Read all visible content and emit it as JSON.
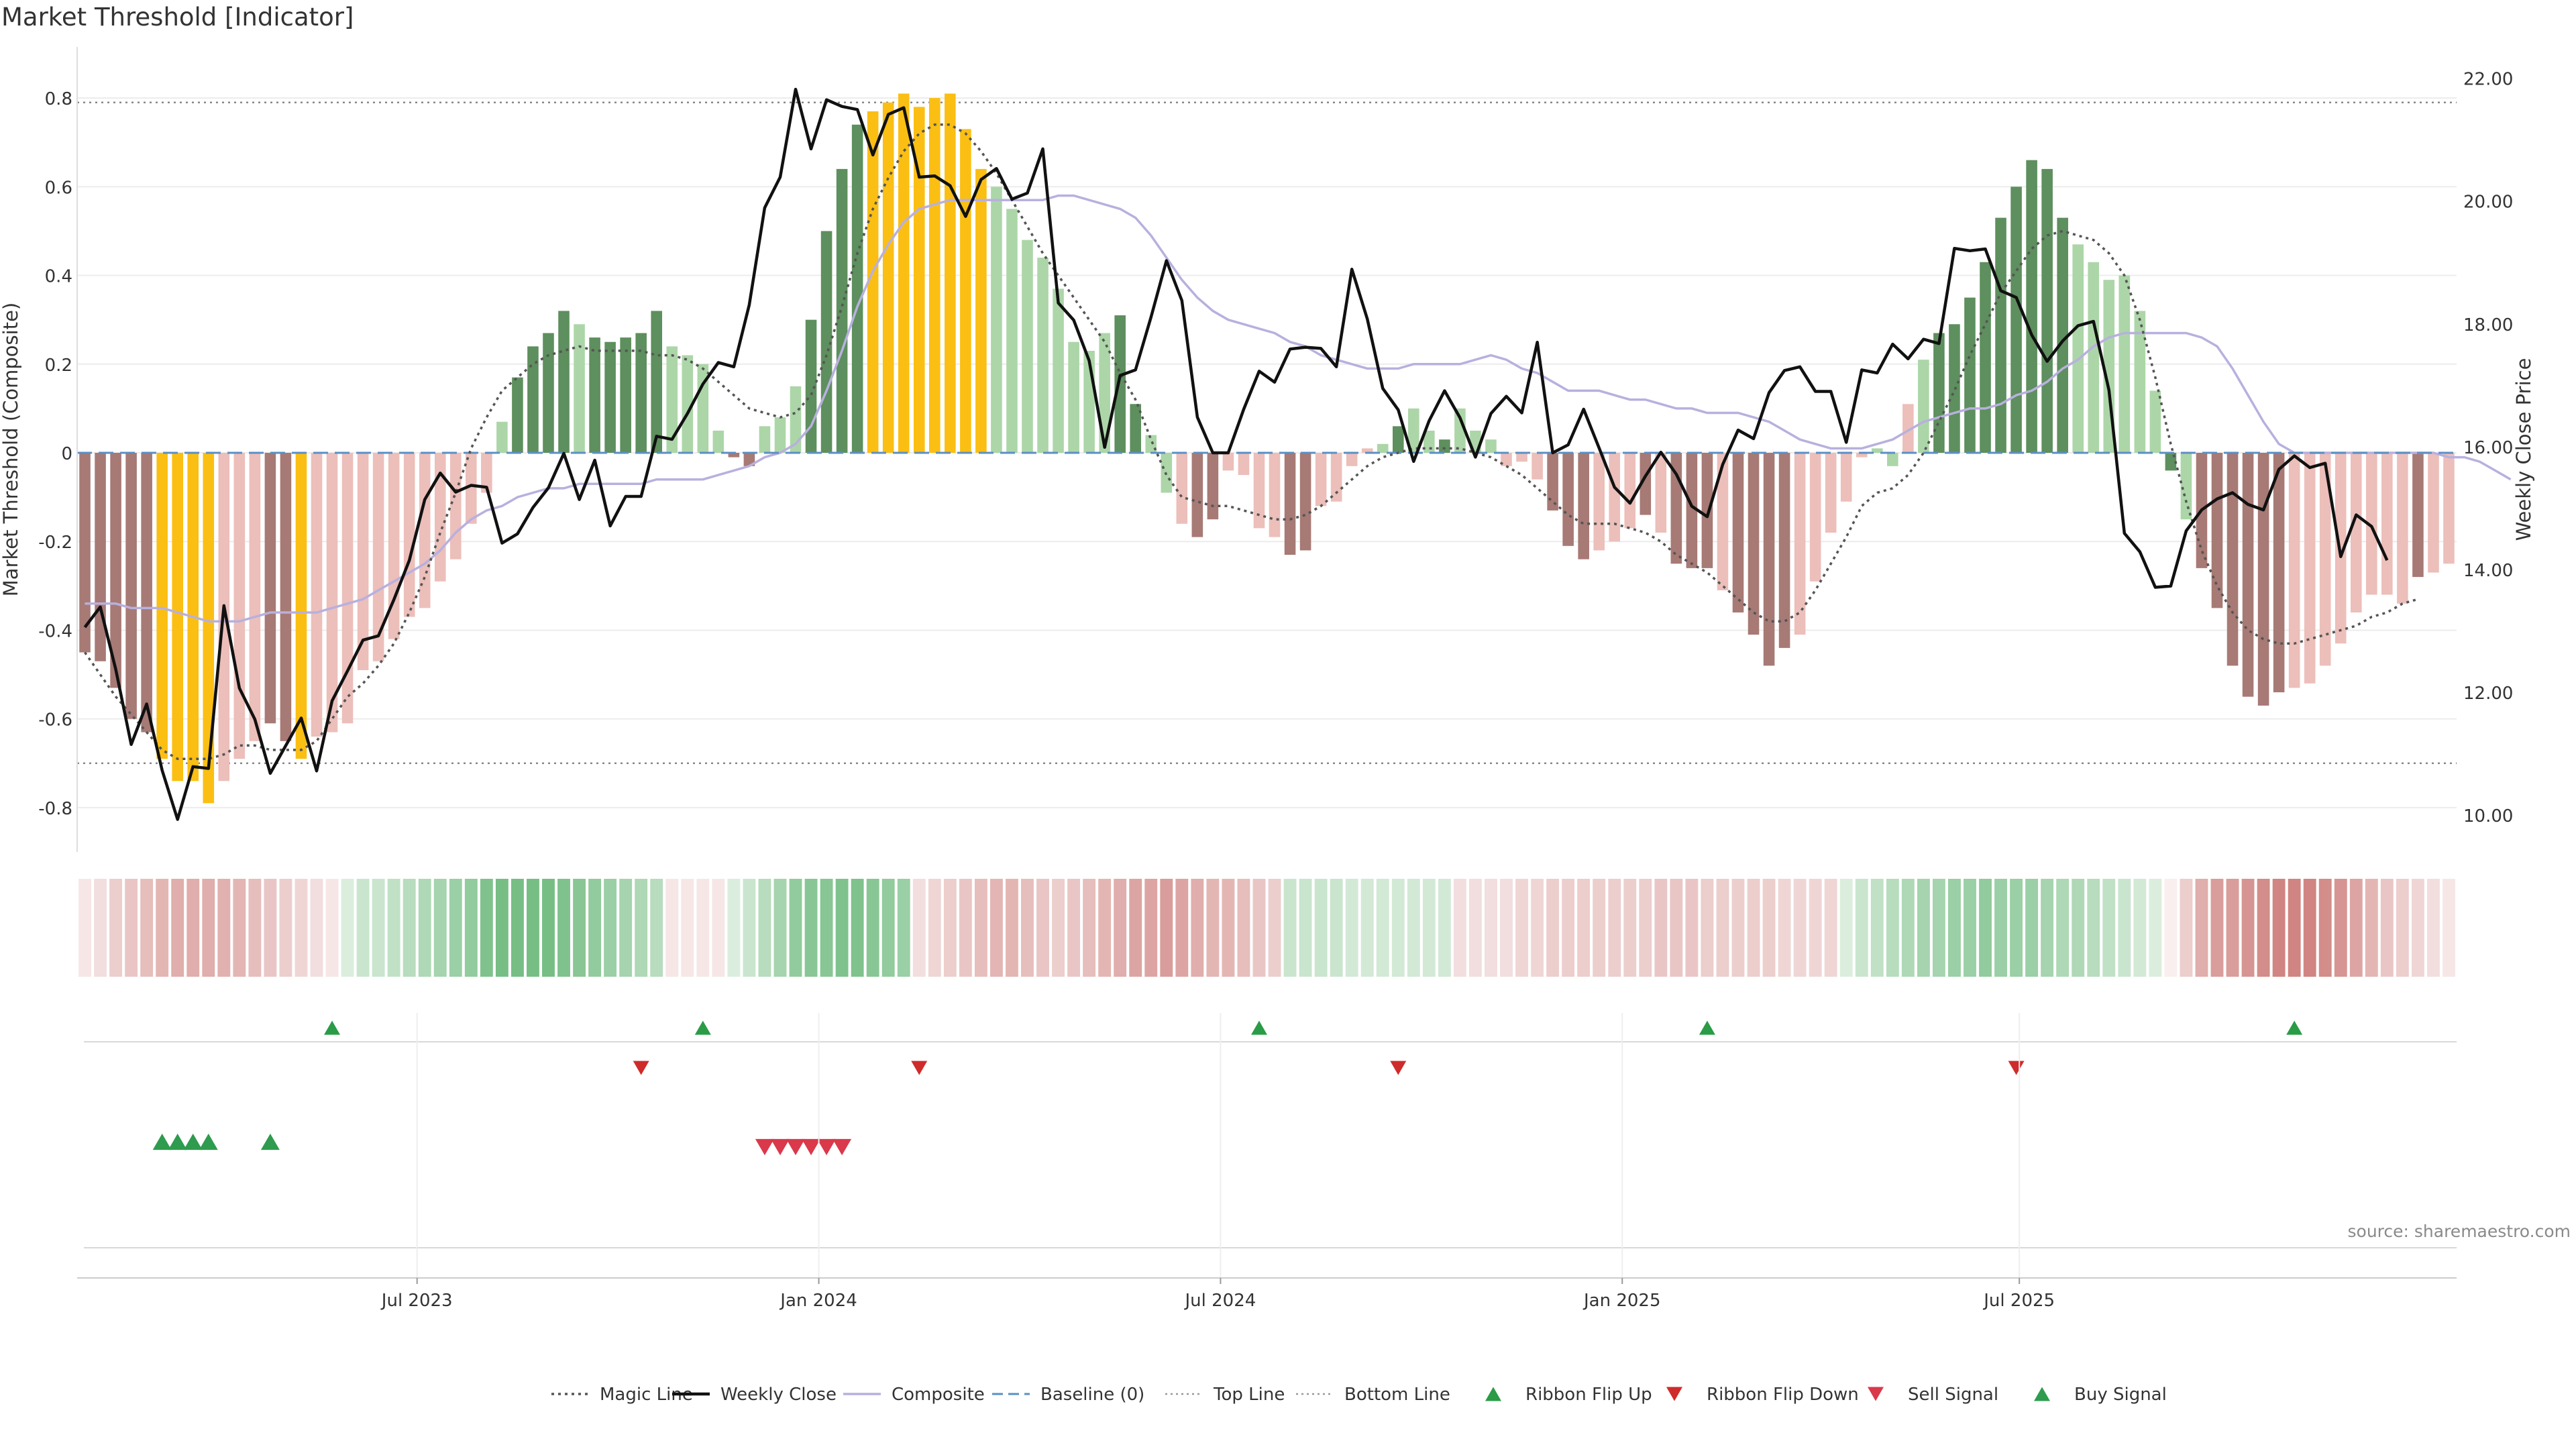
{
  "title": "Market Threshold [Indicator]",
  "source": "source: sharemaestro.com",
  "colors": {
    "strong_pos": "#5e8f5e",
    "light_pos": "#acd6a8",
    "strong_neg": "#a77a75",
    "light_neg": "#ecbfba",
    "extreme": "#fbbf13",
    "close": "#111111",
    "magic": "#555555",
    "composite": "#b8b0de",
    "baseline": "#5b8fc4",
    "buy": "#2e9b4e",
    "sell": "#d9394a",
    "ribbon_up": "#2a9b46",
    "ribbon_down": "#cf2b2b"
  },
  "chart_data": {
    "type": "bar",
    "title": "Market Threshold [Indicator]",
    "ylabel": "Market Threshold (Composite)",
    "y2label": "Weekly Close Price",
    "ylim": [
      -0.9,
      0.9
    ],
    "y2lim": [
      9.4,
      22.4
    ],
    "yticks": [
      "0.8",
      "0.6",
      "0.4",
      "0.2",
      "0",
      "-0.2",
      "-0.4",
      "-0.6",
      "-0.8"
    ],
    "y2ticks": [
      "22.00",
      "20.00",
      "18.00",
      "16.00",
      "14.00",
      "12.00",
      "10.00"
    ],
    "xticks": [
      {
        "label": "Jul 2023",
        "week": 21.5
      },
      {
        "label": "Jan 2024",
        "week": 47.5
      },
      {
        "label": "Jul 2024",
        "week": 73.5
      },
      {
        "label": "Jan 2025",
        "week": 99.5
      },
      {
        "label": "Jul 2025",
        "week": 125.2
      }
    ],
    "top_line": 0.79,
    "bottom_line": -0.7,
    "baseline": 0,
    "composite_values": [
      -0.45,
      -0.47,
      -0.53,
      -0.6,
      -0.63,
      -0.69,
      -0.74,
      -0.74,
      -0.79,
      -0.74,
      -0.69,
      -0.65,
      -0.61,
      -0.65,
      -0.69,
      -0.64,
      -0.63,
      -0.61,
      -0.49,
      -0.47,
      -0.42,
      -0.37,
      -0.35,
      -0.29,
      -0.24,
      -0.16,
      -0.09,
      0.07,
      0.17,
      0.24,
      0.27,
      0.32,
      0.29,
      0.26,
      0.25,
      0.26,
      0.27,
      0.32,
      0.24,
      0.22,
      0.2,
      0.05,
      -0.01,
      -0.03,
      0.06,
      0.08,
      0.15,
      0.3,
      0.5,
      0.64,
      0.74,
      0.77,
      0.79,
      0.81,
      0.78,
      0.8,
      0.81,
      0.73,
      0.64,
      0.6,
      0.55,
      0.48,
      0.44,
      0.37,
      0.25,
      0.23,
      0.27,
      0.31,
      0.11,
      0.04,
      -0.09,
      -0.16,
      -0.19,
      -0.15,
      -0.04,
      -0.05,
      -0.17,
      -0.19,
      -0.23,
      -0.22,
      -0.12,
      -0.11,
      -0.03,
      0.01,
      0.02,
      0.06,
      0.1,
      0.05,
      0.03,
      0.1,
      0.05,
      0.03,
      -0.03,
      -0.02,
      -0.06,
      -0.13,
      -0.21,
      -0.24,
      -0.22,
      -0.2,
      -0.17,
      -0.14,
      -0.18,
      -0.25,
      -0.26,
      -0.26,
      -0.31,
      -0.36,
      -0.41,
      -0.48,
      -0.44,
      -0.41,
      -0.29,
      -0.18,
      -0.11,
      -0.01,
      0.01,
      -0.03,
      0.11,
      0.21,
      0.27,
      0.29,
      0.35,
      0.43,
      0.53,
      0.6,
      0.66,
      0.64,
      0.53,
      0.47,
      0.43,
      0.39,
      0.4,
      0.32,
      0.14,
      -0.04,
      -0.15,
      -0.26,
      -0.35,
      -0.48,
      -0.55,
      -0.57,
      -0.54,
      -0.53,
      -0.52,
      -0.48,
      -0.43,
      -0.36,
      -0.32,
      -0.32,
      -0.34,
      -0.28,
      -0.27,
      -0.25
    ],
    "bar_categories": [
      "sn",
      "sn",
      "sn",
      "sn",
      "sn",
      "x",
      "x",
      "x",
      "x",
      "ln",
      "ln",
      "ln",
      "sn",
      "sn",
      "x",
      "ln",
      "ln",
      "ln",
      "ln",
      "ln",
      "ln",
      "ln",
      "ln",
      "ln",
      "ln",
      "ln",
      "ln",
      "lp",
      "sp",
      "sp",
      "sp",
      "sp",
      "lp",
      "sp",
      "sp",
      "sp",
      "sp",
      "sp",
      "lp",
      "lp",
      "lp",
      "lp",
      "sn",
      "sn",
      "lp",
      "lp",
      "lp",
      "sp",
      "sp",
      "sp",
      "sp",
      "x",
      "x",
      "x",
      "x",
      "x",
      "x",
      "x",
      "x",
      "lp",
      "lp",
      "lp",
      "lp",
      "lp",
      "lp",
      "lp",
      "lp",
      "sp",
      "sp",
      "lp",
      "lp",
      "ln",
      "sn",
      "sn",
      "ln",
      "ln",
      "ln",
      "ln",
      "sn",
      "sn",
      "ln",
      "ln",
      "ln",
      "ln",
      "lp",
      "sp",
      "lp",
      "lp",
      "sp",
      "lp",
      "lp",
      "lp",
      "ln",
      "ln",
      "ln",
      "sn",
      "sn",
      "sn",
      "ln",
      "ln",
      "ln",
      "sn",
      "ln",
      "sn",
      "sn",
      "sn",
      "ln",
      "sn",
      "sn",
      "sn",
      "sn",
      "ln",
      "ln",
      "ln",
      "ln",
      "ln",
      "lp",
      "lp",
      "ln",
      "lp",
      "sp",
      "sp",
      "sp",
      "sp",
      "sp",
      "sp",
      "sp",
      "sp",
      "sp",
      "lp",
      "lp",
      "lp",
      "lp",
      "lp",
      "lp",
      "sp",
      "lp",
      "sn",
      "sn",
      "sn",
      "sn",
      "sn",
      "sn",
      "ln",
      "ln",
      "ln",
      "ln",
      "ln",
      "ln",
      "ln",
      "ln",
      "sn",
      "ln",
      "ln",
      "ln"
    ],
    "weekly_close": [
      13.06,
      13.39,
      12.37,
      11.15,
      11.81,
      10.73,
      9.93,
      10.79,
      10.76,
      13.41,
      12.07,
      11.56,
      10.68,
      11.13,
      11.58,
      10.72,
      11.86,
      12.35,
      12.85,
      12.92,
      13.51,
      14.15,
      15.14,
      15.57,
      15.26,
      15.37,
      15.34,
      14.43,
      14.58,
      15.01,
      15.33,
      15.89,
      15.14,
      15.78,
      14.71,
      15.19,
      15.19,
      16.17,
      16.12,
      16.54,
      17.02,
      17.37,
      17.3,
      18.31,
      19.89,
      20.39,
      21.82,
      20.85,
      21.65,
      21.54,
      21.49,
      20.75,
      21.41,
      21.52,
      20.39,
      20.41,
      20.25,
      19.75,
      20.35,
      20.53,
      20.03,
      20.13,
      20.85,
      18.34,
      18.06,
      17.4,
      15.99,
      17.16,
      17.25,
      18.11,
      19.03,
      18.38,
      16.48,
      15.9,
      15.9,
      16.61,
      17.23,
      17.05,
      17.59,
      17.62,
      17.6,
      17.3,
      18.89,
      18.08,
      16.95,
      16.6,
      15.76,
      16.42,
      16.91,
      16.47,
      15.83,
      16.54,
      16.82,
      16.55,
      17.7,
      15.9,
      16.03,
      16.61,
      15.98,
      15.34,
      15.08,
      15.52,
      15.91,
      15.55,
      15.03,
      14.86,
      15.71,
      16.27,
      16.13,
      16.88,
      17.24,
      17.3,
      16.9,
      16.9,
      16.07,
      17.25,
      17.2,
      17.67,
      17.43,
      17.75,
      17.68,
      19.23,
      19.19,
      19.22,
      18.54,
      18.43,
      17.82,
      17.39,
      17.72,
      17.97,
      18.04,
      16.92,
      14.59,
      14.29,
      13.71,
      13.73,
      14.63,
      14.97,
      15.15,
      15.25,
      15.06,
      14.97,
      15.63,
      15.85,
      15.66,
      15.73,
      14.21,
      14.89,
      14.7,
      14.15
    ],
    "magic_line": [
      -0.45,
      -0.5,
      -0.55,
      -0.59,
      -0.63,
      -0.67,
      -0.69,
      -0.69,
      -0.69,
      -0.68,
      -0.66,
      -0.66,
      -0.67,
      -0.67,
      -0.67,
      -0.65,
      -0.6,
      -0.55,
      -0.52,
      -0.48,
      -0.43,
      -0.36,
      -0.28,
      -0.18,
      -0.09,
      0.01,
      0.08,
      0.14,
      0.17,
      0.2,
      0.22,
      0.23,
      0.24,
      0.23,
      0.23,
      0.23,
      0.23,
      0.22,
      0.22,
      0.21,
      0.19,
      0.16,
      0.13,
      0.1,
      0.09,
      0.08,
      0.09,
      0.13,
      0.22,
      0.33,
      0.45,
      0.55,
      0.62,
      0.68,
      0.72,
      0.74,
      0.74,
      0.72,
      0.68,
      0.63,
      0.57,
      0.51,
      0.45,
      0.4,
      0.35,
      0.3,
      0.25,
      0.18,
      0.12,
      0.03,
      -0.05,
      -0.1,
      -0.11,
      -0.12,
      -0.12,
      -0.13,
      -0.14,
      -0.15,
      -0.15,
      -0.14,
      -0.12,
      -0.09,
      -0.06,
      -0.03,
      -0.01,
      0,
      0.01,
      0.01,
      0.01,
      0.01,
      0,
      -0.01,
      -0.03,
      -0.05,
      -0.08,
      -0.11,
      -0.14,
      -0.16,
      -0.16,
      -0.16,
      -0.17,
      -0.18,
      -0.2,
      -0.23,
      -0.25,
      -0.27,
      -0.3,
      -0.33,
      -0.36,
      -0.38,
      -0.38,
      -0.36,
      -0.31,
      -0.25,
      -0.19,
      -0.12,
      -0.09,
      -0.08,
      -0.05,
      0,
      0.07,
      0.14,
      0.22,
      0.29,
      0.36,
      0.41,
      0.46,
      0.49,
      0.5,
      0.49,
      0.48,
      0.45,
      0.4,
      0.3,
      0.17,
      0.02,
      -0.11,
      -0.22,
      -0.3,
      -0.36,
      -0.4,
      -0.42,
      -0.43,
      -0.43,
      -0.42,
      -0.41,
      -0.4,
      -0.39,
      -0.37,
      -0.36,
      -0.34,
      -0.33
    ],
    "composite_line": [
      -0.34,
      -0.34,
      -0.34,
      -0.35,
      -0.35,
      -0.35,
      -0.36,
      -0.37,
      -0.38,
      -0.38,
      -0.38,
      -0.37,
      -0.36,
      -0.36,
      -0.36,
      -0.36,
      -0.35,
      -0.34,
      -0.33,
      -0.31,
      -0.29,
      -0.27,
      -0.25,
      -0.22,
      -0.18,
      -0.15,
      -0.13,
      -0.12,
      -0.1,
      -0.09,
      -0.08,
      -0.08,
      -0.07,
      -0.07,
      -0.07,
      -0.07,
      -0.07,
      -0.06,
      -0.06,
      -0.06,
      -0.06,
      -0.05,
      -0.04,
      -0.03,
      -0.01,
      0,
      0.02,
      0.06,
      0.14,
      0.23,
      0.33,
      0.41,
      0.47,
      0.52,
      0.55,
      0.56,
      0.57,
      0.57,
      0.57,
      0.57,
      0.57,
      0.57,
      0.57,
      0.58,
      0.58,
      0.57,
      0.56,
      0.55,
      0.53,
      0.49,
      0.44,
      0.39,
      0.35,
      0.32,
      0.3,
      0.29,
      0.28,
      0.27,
      0.25,
      0.24,
      0.22,
      0.21,
      0.2,
      0.19,
      0.19,
      0.19,
      0.2,
      0.2,
      0.2,
      0.2,
      0.21,
      0.22,
      0.21,
      0.19,
      0.18,
      0.16,
      0.14,
      0.14,
      0.14,
      0.13,
      0.12,
      0.12,
      0.11,
      0.1,
      0.1,
      0.09,
      0.09,
      0.09,
      0.08,
      0.07,
      0.05,
      0.03,
      0.02,
      0.01,
      0.01,
      0.01,
      0.02,
      0.03,
      0.05,
      0.07,
      0.08,
      0.09,
      0.1,
      0.1,
      0.11,
      0.13,
      0.14,
      0.16,
      0.19,
      0.21,
      0.24,
      0.26,
      0.27,
      0.27,
      0.27,
      0.27,
      0.27,
      0.26,
      0.24,
      0.19,
      0.13,
      0.07,
      0.02,
      0,
      0,
      0,
      0,
      0,
      0,
      0,
      0,
      0,
      0,
      -0.01,
      -0.01,
      -0.02,
      -0.04,
      -0.06
    ],
    "ribbon_values": [
      -0.15,
      -0.2,
      -0.3,
      -0.35,
      -0.4,
      -0.45,
      -0.5,
      -0.5,
      -0.5,
      -0.48,
      -0.45,
      -0.4,
      -0.35,
      -0.3,
      -0.25,
      -0.2,
      -0.15,
      0.2,
      0.3,
      0.3,
      0.35,
      0.4,
      0.45,
      0.5,
      0.55,
      0.6,
      0.7,
      0.75,
      0.75,
      0.75,
      0.75,
      0.7,
      0.65,
      0.6,
      0.55,
      0.5,
      0.45,
      0.4,
      -0.15,
      -0.15,
      -0.15,
      -0.15,
      0.2,
      0.3,
      0.4,
      0.5,
      0.6,
      0.65,
      0.65,
      0.7,
      0.7,
      0.65,
      0.6,
      0.55,
      -0.2,
      -0.25,
      -0.3,
      -0.35,
      -0.4,
      -0.45,
      -0.45,
      -0.4,
      -0.35,
      -0.3,
      -0.35,
      -0.4,
      -0.45,
      -0.5,
      -0.55,
      -0.55,
      -0.6,
      -0.55,
      -0.5,
      -0.45,
      -0.45,
      -0.4,
      -0.35,
      -0.3,
      0.3,
      0.3,
      0.3,
      0.3,
      0.25,
      0.25,
      0.25,
      0.25,
      0.25,
      0.25,
      0.25,
      -0.2,
      -0.2,
      -0.2,
      -0.2,
      -0.25,
      -0.25,
      -0.3,
      -0.3,
      -0.3,
      -0.3,
      -0.3,
      -0.3,
      -0.3,
      -0.35,
      -0.35,
      -0.35,
      -0.3,
      -0.3,
      -0.3,
      -0.3,
      -0.3,
      -0.25,
      -0.25,
      -0.25,
      -0.25,
      0.2,
      0.3,
      0.35,
      0.4,
      0.45,
      0.5,
      0.5,
      0.55,
      0.55,
      0.6,
      0.55,
      0.55,
      0.55,
      0.5,
      0.45,
      0.45,
      0.4,
      0.35,
      0.3,
      0.25,
      0.2,
      -0.1,
      -0.3,
      -0.5,
      -0.6,
      -0.6,
      -0.65,
      -0.7,
      -0.75,
      -0.75,
      -0.75,
      -0.7,
      -0.65,
      -0.55,
      -0.45,
      -0.35,
      -0.3,
      -0.25,
      -0.2,
      -0.15
    ],
    "ribbon_flip_up_weeks": [
      16,
      40,
      76,
      105,
      143
    ],
    "ribbon_flip_down_weeks": [
      36,
      54,
      85,
      125
    ],
    "buy_signal_weeks": [
      5,
      6,
      7,
      8,
      12
    ],
    "sell_signal_weeks": [
      44,
      45,
      46,
      47,
      48,
      49
    ],
    "legend": [
      {
        "key": "magic",
        "label": "Magic Line",
        "style": "dotted"
      },
      {
        "key": "close",
        "label": "Weekly Close",
        "style": "solid"
      },
      {
        "key": "composite",
        "label": "Composite",
        "style": "solid"
      },
      {
        "key": "baseline",
        "label": "Baseline (0)",
        "style": "dashed"
      },
      {
        "key": "top",
        "label": "Top Line",
        "style": "dotted"
      },
      {
        "key": "bottom",
        "label": "Bottom Line",
        "style": "dotted"
      },
      {
        "key": "flip_up",
        "label": "Ribbon Flip Up",
        "style": "marker-up"
      },
      {
        "key": "flip_down",
        "label": "Ribbon Flip Down",
        "style": "marker-down"
      },
      {
        "key": "sell",
        "label": "Sell Signal",
        "style": "marker-down"
      },
      {
        "key": "buy",
        "label": "Buy Signal",
        "style": "marker-up"
      }
    ]
  }
}
